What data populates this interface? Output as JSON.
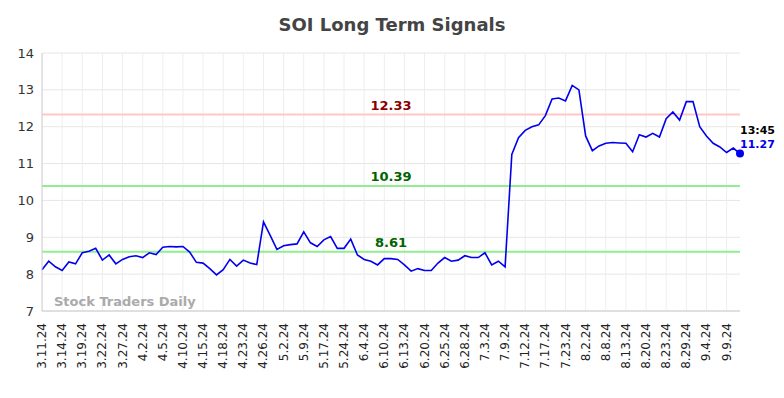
{
  "chart_data": {
    "type": "line",
    "title": "SOI Long Term Signals",
    "watermark": "Stock Traders Daily",
    "color": "#0000ee",
    "grid": true,
    "ylim": [
      7,
      14
    ],
    "yticks": [
      7,
      8,
      9,
      10,
      11,
      12,
      13,
      14
    ],
    "categories": [
      "3.11.24",
      null,
      null,
      "3.14.24",
      null,
      null,
      "3.19.24",
      null,
      null,
      "3.22.24",
      null,
      null,
      "3.27.24",
      null,
      null,
      "4.2.24",
      null,
      null,
      "4.5.24",
      null,
      null,
      "4.10.24",
      null,
      null,
      "4.15.24",
      null,
      null,
      "4.18.24",
      null,
      null,
      "4.23.24",
      null,
      null,
      "4.26.24",
      null,
      null,
      "5.2.24",
      null,
      null,
      "5.9.24",
      null,
      null,
      "5.17.24",
      null,
      null,
      "5.24.24",
      null,
      null,
      "6.4.24",
      null,
      null,
      "6.10.24",
      null,
      null,
      "6.13.24",
      null,
      null,
      "6.20.24",
      null,
      null,
      "6.25.24",
      null,
      null,
      "6.28.24",
      null,
      null,
      "7.3.24",
      null,
      null,
      "7.9.24",
      null,
      null,
      "7.12.24",
      null,
      null,
      "7.17.24",
      null,
      null,
      "7.23.24",
      null,
      null,
      "8.2.24",
      null,
      null,
      "8.8.24",
      null,
      null,
      "8.13.24",
      null,
      null,
      "8.20.24",
      null,
      null,
      "8.23.24",
      null,
      null,
      "8.29.24",
      null,
      null,
      "9.4.24",
      null,
      null,
      "9.9.24",
      null,
      null
    ],
    "values": [
      8.12,
      8.35,
      8.2,
      8.1,
      8.33,
      8.28,
      8.58,
      8.62,
      8.7,
      8.38,
      8.52,
      8.28,
      8.4,
      8.47,
      8.5,
      8.45,
      8.58,
      8.53,
      8.73,
      8.75,
      8.74,
      8.75,
      8.6,
      8.32,
      8.3,
      8.15,
      7.98,
      8.12,
      8.4,
      8.22,
      8.38,
      8.3,
      8.26,
      9.42,
      9.05,
      8.67,
      8.77,
      8.8,
      8.82,
      9.15,
      8.85,
      8.75,
      8.93,
      9.02,
      8.7,
      8.7,
      8.95,
      8.52,
      8.4,
      8.35,
      8.25,
      8.42,
      8.42,
      8.4,
      8.25,
      8.08,
      8.15,
      8.1,
      8.1,
      8.3,
      8.45,
      8.35,
      8.38,
      8.5,
      8.45,
      8.45,
      8.58,
      8.25,
      8.35,
      8.2,
      11.25,
      11.7,
      11.9,
      12.0,
      12.05,
      12.3,
      12.75,
      12.78,
      12.7,
      13.12,
      13.0,
      11.75,
      11.35,
      11.48,
      11.55,
      11.57,
      11.56,
      11.55,
      11.32,
      11.78,
      11.72,
      11.82,
      11.72,
      12.22,
      12.4,
      12.18,
      12.68,
      12.68,
      12.0,
      11.75,
      11.55,
      11.45,
      11.3,
      11.42,
      11.27
    ],
    "reference_lines": [
      {
        "value": 12.33,
        "label": "12.33",
        "color": "#ffc8c8",
        "label_color": "#8b0000"
      },
      {
        "value": 10.39,
        "label": "10.39",
        "color": "#90ee90",
        "label_color": "#006400"
      },
      {
        "value": 8.61,
        "label": "8.61",
        "color": "#90ee90",
        "label_color": "#006400"
      }
    ],
    "last_point": {
      "time": "13:45",
      "value_label": "11.27"
    }
  }
}
